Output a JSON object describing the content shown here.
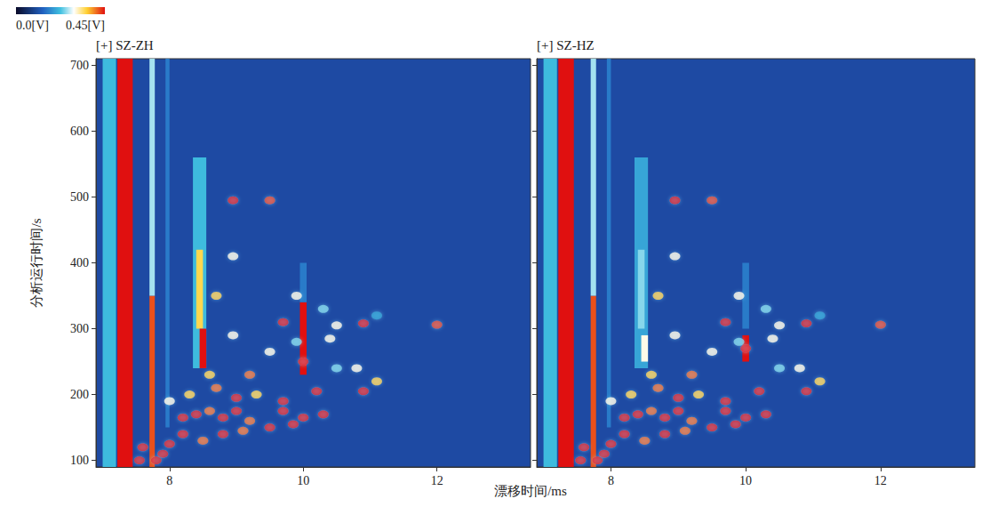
{
  "chart_data": {
    "type": "scatter",
    "xlabel": "漂移时间/ms",
    "ylabel": "分析运行时间/s",
    "xlim": [
      6.9,
      13.4
    ],
    "ylim": [
      90,
      710
    ],
    "xticks": [
      8,
      10,
      12
    ],
    "yticks": [
      100,
      200,
      300,
      400,
      500,
      600,
      700
    ],
    "colorbar": {
      "range": [
        0,
        0.45
      ],
      "ticks": [
        {
          "value": 0,
          "label": "0.0[V]"
        },
        {
          "value": 0.45,
          "label": "0.45[V]"
        }
      ]
    },
    "panels": [
      {
        "title": "[+] SZ-ZH",
        "bands": [
          [
            7.0,
            7.2,
            90,
            710,
            0.22
          ],
          [
            7.22,
            7.45,
            90,
            710,
            0.45
          ],
          [
            7.7,
            7.78,
            90,
            350,
            0.42
          ],
          [
            7.7,
            7.78,
            350,
            710,
            0.26
          ],
          [
            7.94,
            8.0,
            150,
            710,
            0.16
          ],
          [
            8.35,
            8.55,
            240,
            560,
            0.22
          ],
          [
            8.4,
            8.5,
            300,
            420,
            0.35
          ],
          [
            8.45,
            8.55,
            240,
            300,
            0.45
          ],
          [
            9.95,
            10.05,
            340,
            400,
            0.16
          ],
          [
            9.95,
            10.05,
            230,
            340,
            0.45
          ]
        ],
        "points": [
          [
            8.95,
            495,
            0.45
          ],
          [
            9.5,
            495,
            0.42
          ],
          [
            8.95,
            410,
            0.3
          ],
          [
            9.7,
            310,
            0.45
          ],
          [
            10.9,
            308,
            0.45
          ],
          [
            12.0,
            306,
            0.42
          ],
          [
            8.7,
            350,
            0.35
          ],
          [
            9.9,
            350,
            0.3
          ],
          [
            10.3,
            330,
            0.25
          ],
          [
            10.5,
            305,
            0.3
          ],
          [
            11.1,
            320,
            0.2
          ],
          [
            10.0,
            250,
            0.45
          ],
          [
            9.7,
            190,
            0.45
          ],
          [
            9.7,
            175,
            0.45
          ],
          [
            10.2,
            205,
            0.45
          ],
          [
            10.9,
            205,
            0.45
          ],
          [
            11.1,
            220,
            0.35
          ],
          [
            10.0,
            165,
            0.45
          ],
          [
            10.3,
            170,
            0.45
          ],
          [
            9.85,
            155,
            0.45
          ],
          [
            9.5,
            150,
            0.45
          ],
          [
            9.2,
            160,
            0.4
          ],
          [
            9.0,
            175,
            0.45
          ],
          [
            8.8,
            165,
            0.45
          ],
          [
            8.6,
            175,
            0.4
          ],
          [
            8.4,
            170,
            0.45
          ],
          [
            8.2,
            165,
            0.45
          ],
          [
            8.2,
            140,
            0.45
          ],
          [
            8.0,
            125,
            0.45
          ],
          [
            7.9,
            110,
            0.45
          ],
          [
            7.6,
            120,
            0.45
          ],
          [
            7.55,
            100,
            0.45
          ],
          [
            7.8,
            100,
            0.45
          ],
          [
            8.5,
            130,
            0.4
          ],
          [
            8.8,
            140,
            0.45
          ],
          [
            9.1,
            145,
            0.4
          ],
          [
            9.3,
            200,
            0.35
          ],
          [
            9.0,
            195,
            0.45
          ],
          [
            9.2,
            230,
            0.4
          ],
          [
            8.7,
            210,
            0.4
          ],
          [
            8.6,
            230,
            0.35
          ],
          [
            8.3,
            200,
            0.35
          ],
          [
            8.0,
            190,
            0.3
          ],
          [
            9.5,
            265,
            0.3
          ],
          [
            10.5,
            240,
            0.25
          ],
          [
            10.8,
            240,
            0.3
          ],
          [
            8.95,
            290,
            0.3
          ],
          [
            9.9,
            280,
            0.25
          ],
          [
            10.4,
            285,
            0.3
          ]
        ]
      },
      {
        "title": "[+] SZ-HZ",
        "tick_labels": "x",
        "bands": [
          [
            7.0,
            7.2,
            90,
            710,
            0.22
          ],
          [
            7.22,
            7.45,
            90,
            710,
            0.45
          ],
          [
            7.7,
            7.78,
            90,
            350,
            0.42
          ],
          [
            7.7,
            7.78,
            350,
            710,
            0.26
          ],
          [
            7.94,
            8.0,
            150,
            710,
            0.16
          ],
          [
            8.35,
            8.55,
            240,
            560,
            0.2
          ],
          [
            8.4,
            8.5,
            300,
            420,
            0.25
          ],
          [
            8.45,
            8.55,
            250,
            290,
            0.3
          ],
          [
            9.95,
            10.05,
            300,
            400,
            0.16
          ],
          [
            9.95,
            10.05,
            250,
            290,
            0.45
          ]
        ],
        "points": [
          [
            8.95,
            495,
            0.45
          ],
          [
            9.5,
            495,
            0.42
          ],
          [
            8.95,
            410,
            0.3
          ],
          [
            9.7,
            310,
            0.45
          ],
          [
            10.9,
            308,
            0.45
          ],
          [
            12.0,
            306,
            0.42
          ],
          [
            8.7,
            350,
            0.35
          ],
          [
            9.9,
            350,
            0.3
          ],
          [
            10.3,
            330,
            0.25
          ],
          [
            10.5,
            305,
            0.3
          ],
          [
            11.1,
            320,
            0.2
          ],
          [
            10.0,
            270,
            0.45
          ],
          [
            9.7,
            190,
            0.45
          ],
          [
            9.7,
            175,
            0.45
          ],
          [
            10.2,
            205,
            0.45
          ],
          [
            10.9,
            205,
            0.45
          ],
          [
            11.1,
            220,
            0.35
          ],
          [
            10.0,
            165,
            0.45
          ],
          [
            10.3,
            170,
            0.45
          ],
          [
            9.85,
            155,
            0.45
          ],
          [
            9.5,
            150,
            0.45
          ],
          [
            9.2,
            160,
            0.4
          ],
          [
            9.0,
            175,
            0.45
          ],
          [
            8.8,
            165,
            0.45
          ],
          [
            8.6,
            175,
            0.4
          ],
          [
            8.4,
            170,
            0.45
          ],
          [
            8.2,
            165,
            0.45
          ],
          [
            8.2,
            140,
            0.45
          ],
          [
            8.0,
            125,
            0.45
          ],
          [
            7.9,
            110,
            0.45
          ],
          [
            7.6,
            120,
            0.45
          ],
          [
            7.55,
            100,
            0.45
          ],
          [
            7.8,
            100,
            0.45
          ],
          [
            8.5,
            130,
            0.4
          ],
          [
            8.8,
            140,
            0.45
          ],
          [
            9.1,
            145,
            0.4
          ],
          [
            9.3,
            200,
            0.35
          ],
          [
            9.0,
            195,
            0.45
          ],
          [
            9.2,
            230,
            0.4
          ],
          [
            8.7,
            210,
            0.4
          ],
          [
            8.6,
            230,
            0.35
          ],
          [
            8.3,
            200,
            0.35
          ],
          [
            8.0,
            190,
            0.3
          ],
          [
            9.5,
            265,
            0.3
          ],
          [
            10.5,
            240,
            0.25
          ],
          [
            10.8,
            240,
            0.3
          ],
          [
            8.95,
            290,
            0.3
          ],
          [
            9.9,
            280,
            0.25
          ],
          [
            10.4,
            285,
            0.3
          ]
        ]
      }
    ]
  }
}
